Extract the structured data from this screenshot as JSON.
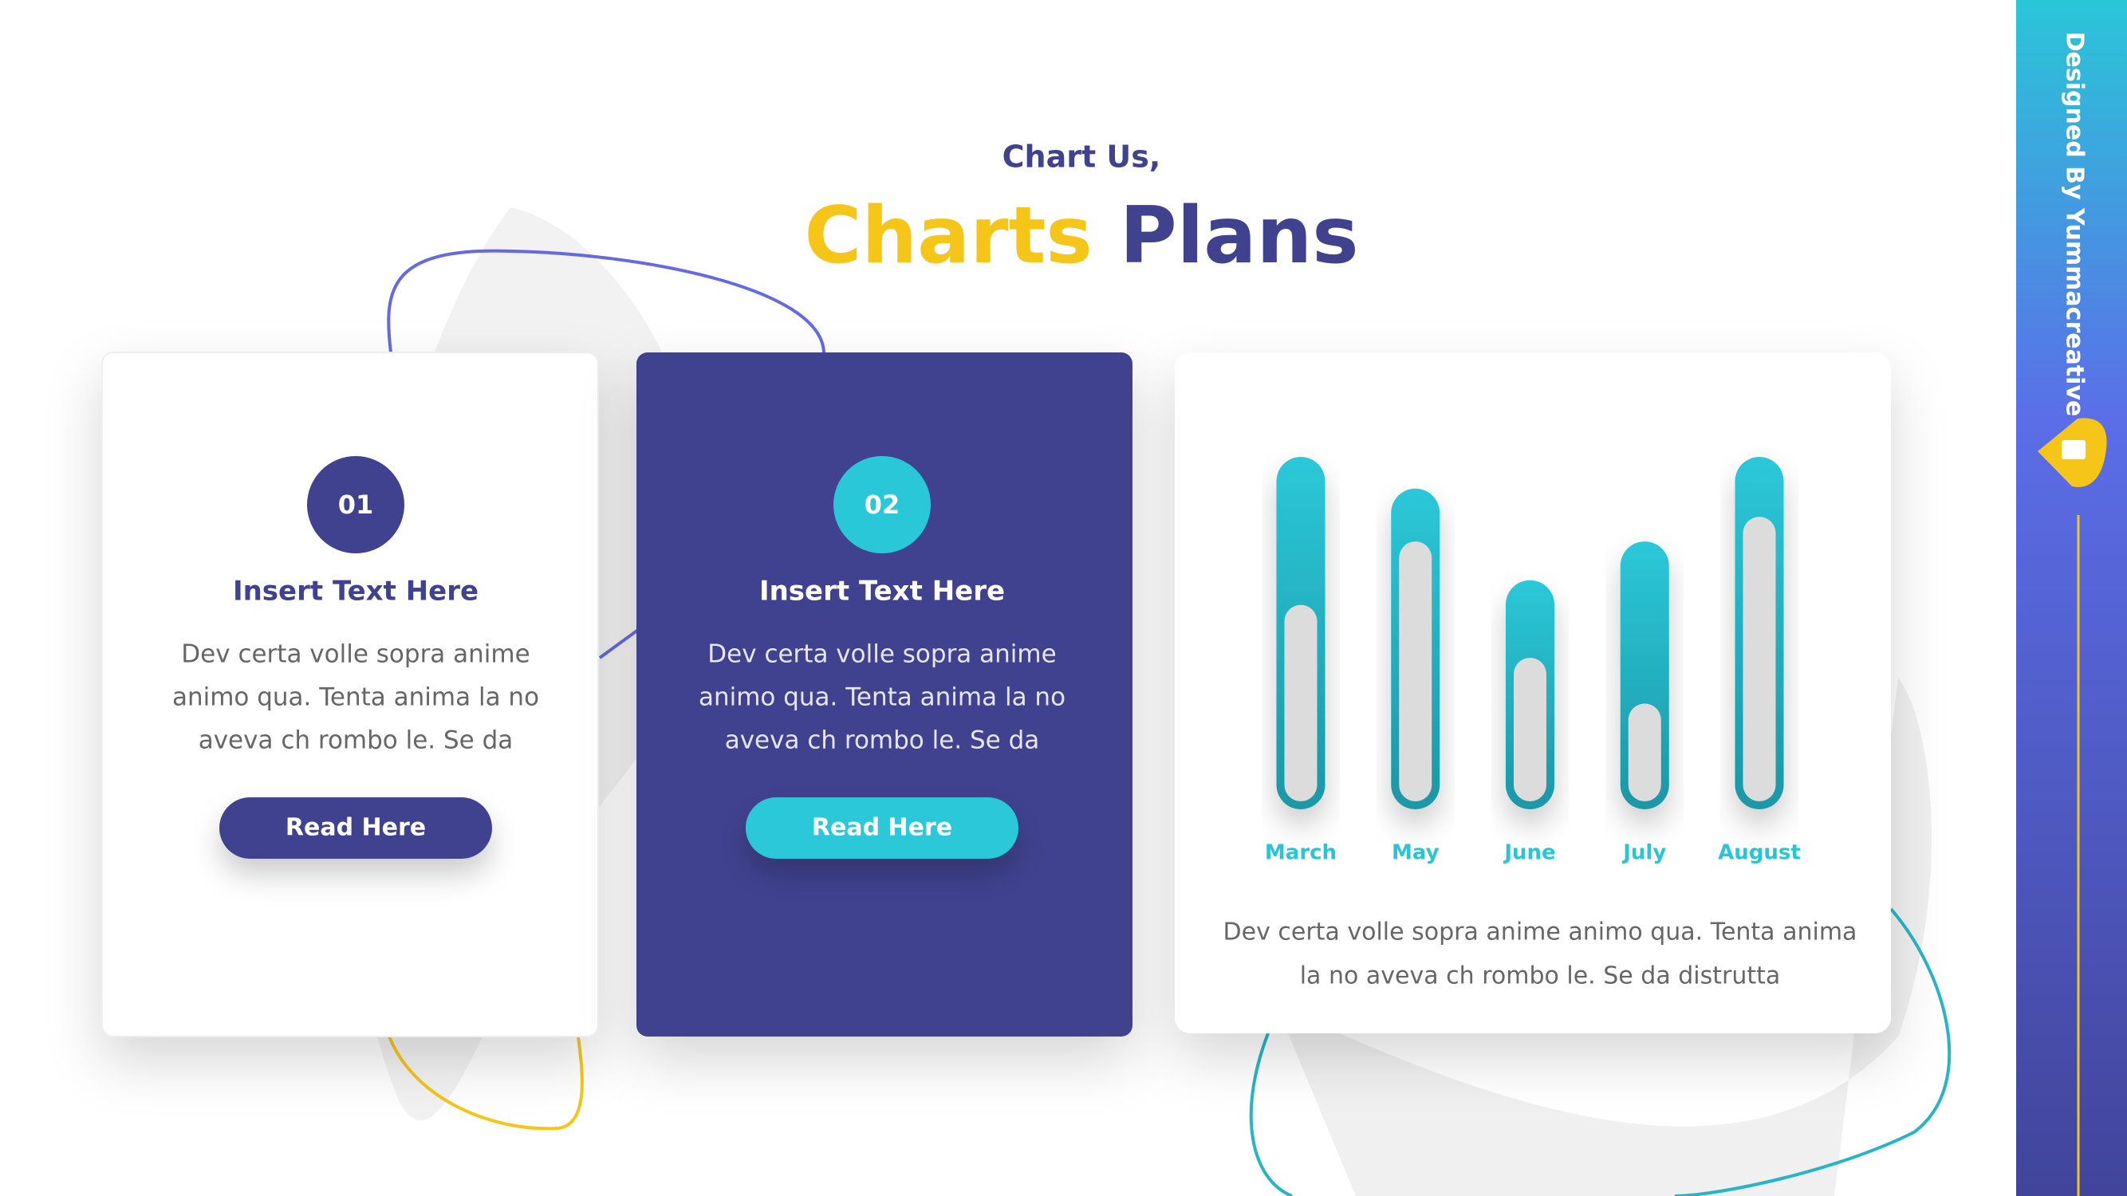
{
  "header": {
    "kicker": "Chart Us,",
    "title_highlight": "Charts",
    "title_rest": "Plans"
  },
  "cards": [
    {
      "number": "01",
      "title": "Insert Text Here",
      "lines": [
        "Dev certa volle sopra anime",
        "animo qua. Tenta anima la no",
        "aveva ch rombo le. Se da"
      ],
      "button": "Read Here"
    },
    {
      "number": "02",
      "title": "Insert Text Here",
      "lines": [
        "Dev certa volle sopra anime",
        "animo qua. Tenta anima la no",
        "aveva ch rombo le. Se da"
      ],
      "button": "Read Here"
    }
  ],
  "chart_data": {
    "type": "bar",
    "categories": [
      "March",
      "May",
      "June",
      "July",
      "August"
    ],
    "series": [
      {
        "color": "#29c4d6",
        "values": [
          100,
          91,
          65,
          76,
          100
        ]
      },
      {
        "color": "#dcdcdc",
        "values": [
          58,
          76,
          43,
          30,
          83
        ]
      }
    ],
    "ylim": [
      0,
      100
    ]
  },
  "chart_caption": [
    "Dev certa volle sopra anime animo qua. Tenta anima",
    "la no aveva ch rombo le. Se da distrutta"
  ],
  "sidebar": {
    "credit": "Designed By Yummacreative"
  }
}
